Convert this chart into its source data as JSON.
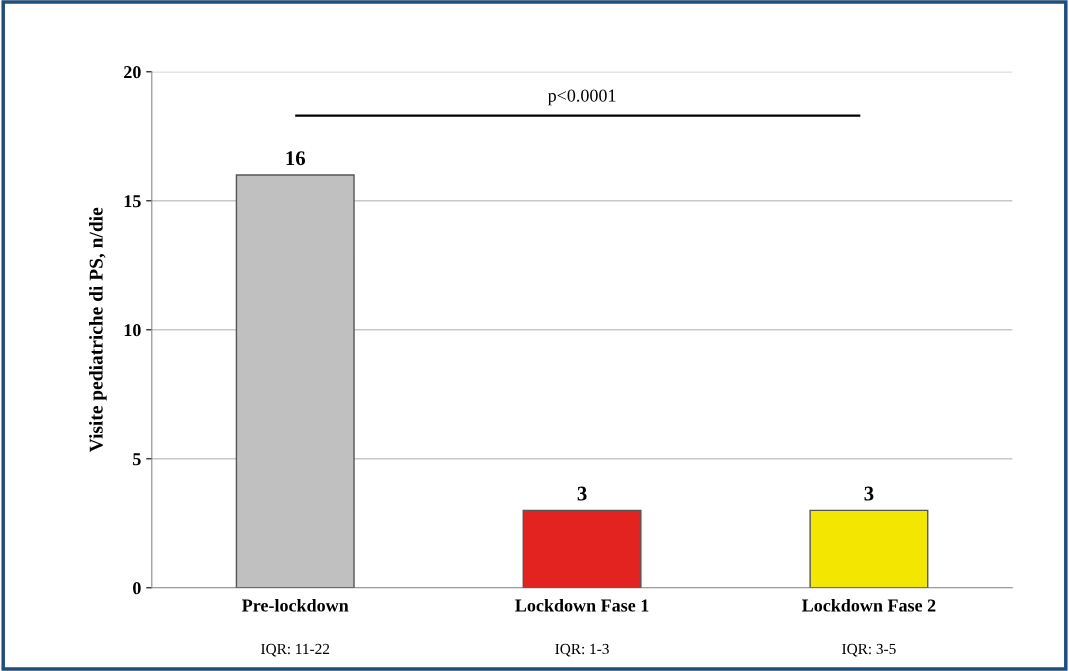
{
  "chart_data": {
    "type": "bar",
    "ylabel": "Visite pediatriche di PS, n/die",
    "categories": [
      "Pre-lockdown",
      "Lockdown Fase 1",
      "Lockdown Fase 2"
    ],
    "values": [
      16,
      3,
      3
    ],
    "colors": [
      "#c0c0c0",
      "#e32320",
      "#f3e600"
    ],
    "ylim": [
      0,
      20
    ],
    "yticks": [
      0,
      5,
      10,
      15,
      20
    ],
    "grid": "y",
    "data_labels": true,
    "annotations": [
      "IQR: 11-22",
      "IQR: 1-3",
      "IQR: 3-5",
      "p<0.0001"
    ]
  }
}
